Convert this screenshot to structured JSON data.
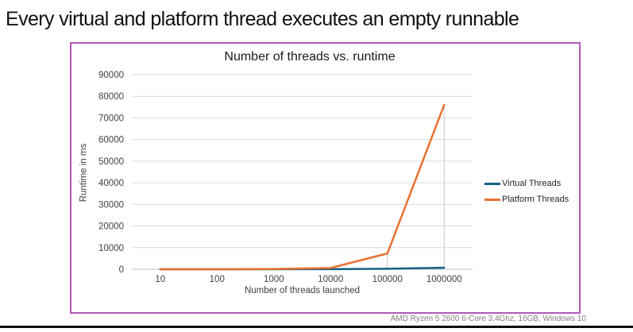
{
  "slide": {
    "title": "Every virtual and platform thread executes an empty runnable",
    "caption": "AMD Ryzen 5 2600 6-Core 3.4Ghz, 16GB, Windows 10"
  },
  "chart_data": {
    "type": "line",
    "title": "Number of threads vs. runtime",
    "xlabel": "Number of threads launched",
    "ylabel": "Runtime in ms",
    "x_scale": "logarithmic-categories",
    "categories": [
      "10",
      "100",
      "1000",
      "10000",
      "100000",
      "1000000"
    ],
    "series": [
      {
        "name": "Virtual Threads",
        "color": "#156082",
        "values": [
          2,
          4,
          10,
          60,
          250,
          700
        ]
      },
      {
        "name": "Platform Threads",
        "color": "#E97132",
        "values": [
          5,
          15,
          120,
          600,
          7300,
          76000
        ]
      }
    ],
    "ylim": [
      0,
      90000
    ],
    "ytick_step": 10000,
    "grid": true,
    "legend_position": "right",
    "drop_lines": [
      {
        "series": 1,
        "category": "100000"
      },
      {
        "series": 1,
        "category": "1000000"
      }
    ],
    "colors": {
      "box_border": "#B457B8",
      "gridline": "#D9D9D9",
      "drop_line": "#C9C9C9",
      "baseline": "#BFBFBF",
      "tick_text": "#404040"
    }
  }
}
